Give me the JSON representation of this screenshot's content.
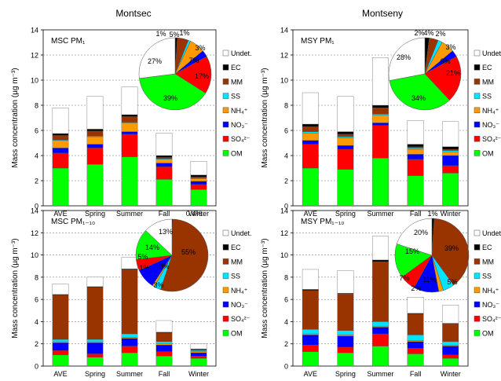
{
  "column_titles": [
    "Montsec",
    "Montseny"
  ],
  "palette": {
    "OM": "#00ff00",
    "SO4": "#ff0000",
    "NO3": "#0000ff",
    "NH4": "#ff9900",
    "SS": "#00e5ff",
    "MM": "#993300",
    "EC": "#000000",
    "Undet": "#ffffff"
  },
  "legend": {
    "items": [
      {
        "key": "Undet",
        "label": "Undet."
      },
      {
        "key": "EC",
        "label": "EC"
      },
      {
        "key": "MM",
        "label": "MM"
      },
      {
        "key": "SS",
        "label": "SS"
      },
      {
        "key": "NH4",
        "label": "NH₄⁺"
      },
      {
        "key": "NO3",
        "label": "NO₃⁻"
      },
      {
        "key": "SO4",
        "label": "SO₄²⁻"
      },
      {
        "key": "OM",
        "label": "OM"
      }
    ]
  },
  "chart_data": [
    {
      "type": "bar",
      "stacked": true,
      "title": "MSC PM₁",
      "ylabel": "Mass concentration (µg m⁻³)",
      "ylim": [
        0,
        14
      ],
      "yticks": [
        0,
        2,
        4,
        6,
        8,
        10,
        12,
        14
      ],
      "grid": true,
      "legend_position": "right",
      "categories": [
        "AVE",
        "Spring",
        "Summer",
        "Fall",
        "Winter"
      ],
      "series": [
        {
          "key": "OM",
          "name": "OM",
          "values": [
            3.0,
            3.3,
            3.9,
            2.1,
            1.3
          ]
        },
        {
          "key": "SO4",
          "name": "SO₄²⁻",
          "values": [
            1.2,
            1.3,
            1.8,
            1.0,
            0.4
          ]
        },
        {
          "key": "NO3",
          "name": "NO₃⁻",
          "values": [
            0.4,
            0.3,
            0.2,
            0.3,
            0.25
          ]
        },
        {
          "key": "NH4",
          "name": "NH₄⁺",
          "values": [
            0.6,
            0.6,
            0.7,
            0.3,
            0.2
          ]
        },
        {
          "key": "SS",
          "name": "SS",
          "values": [
            0.05,
            0.05,
            0.05,
            0.05,
            0.05
          ]
        },
        {
          "key": "MM",
          "name": "MM",
          "values": [
            0.35,
            0.4,
            0.45,
            0.1,
            0.1
          ]
        },
        {
          "key": "EC",
          "name": "EC",
          "values": [
            0.15,
            0.15,
            0.15,
            0.15,
            0.15
          ]
        },
        {
          "key": "Undet",
          "name": "Undet.",
          "values": [
            2.05,
            2.6,
            2.2,
            1.8,
            1.1
          ]
        }
      ],
      "pie": {
        "labels": [
          "OM",
          "SO₄²⁻",
          "NO₃⁻",
          "NH₄⁺",
          "SS",
          "MM",
          "EC",
          "Undet."
        ],
        "keys": [
          "OM",
          "SO4",
          "NO3",
          "NH4",
          "SS",
          "MM",
          "EC",
          "Undet"
        ],
        "values": [
          39,
          17,
          3,
          7,
          1,
          5,
          1,
          27
        ],
        "labels_text": [
          "39%",
          "17%",
          "3%",
          "7%",
          "1%",
          "5%",
          "1%",
          "27%"
        ]
      }
    },
    {
      "type": "bar",
      "stacked": true,
      "title": "MSY PM₁",
      "ylabel": "Mass concentration (µg m⁻³)",
      "ylim": [
        0,
        14
      ],
      "yticks": [
        0,
        2,
        4,
        6,
        8,
        10,
        12,
        14
      ],
      "grid": true,
      "legend_position": "right",
      "categories": [
        "AVE",
        "Spring",
        "Summer",
        "Fall",
        "Winter"
      ],
      "series": [
        {
          "key": "OM",
          "name": "OM",
          "values": [
            3.0,
            2.9,
            3.8,
            2.4,
            2.6
          ]
        },
        {
          "key": "SO4",
          "name": "SO₄²⁻",
          "values": [
            1.9,
            1.6,
            2.6,
            1.3,
            0.6
          ]
        },
        {
          "key": "NO3",
          "name": "NO₃⁻",
          "values": [
            0.3,
            0.3,
            0.2,
            0.4,
            0.8
          ]
        },
        {
          "key": "NH4",
          "name": "NH₄⁺",
          "values": [
            0.6,
            0.6,
            0.6,
            0.4,
            0.3
          ]
        },
        {
          "key": "SS",
          "name": "SS",
          "values": [
            0.1,
            0.1,
            0.1,
            0.1,
            0.1
          ]
        },
        {
          "key": "MM",
          "name": "MM",
          "values": [
            0.4,
            0.2,
            0.5,
            0.1,
            0.1
          ]
        },
        {
          "key": "EC",
          "name": "EC",
          "values": [
            0.2,
            0.2,
            0.2,
            0.2,
            0.2
          ]
        },
        {
          "key": "Undet",
          "name": "Undet.",
          "values": [
            2.5,
            2.8,
            3.8,
            1.9,
            2.0
          ]
        }
      ],
      "pie": {
        "labels": [
          "OM",
          "SO₄²⁻",
          "NO₃⁻",
          "NH₄⁺",
          "SS",
          "MM",
          "EC",
          "Undet."
        ],
        "keys": [
          "OM",
          "SO4",
          "NO3",
          "NH4",
          "SS",
          "MM",
          "EC",
          "Undet"
        ],
        "values": [
          34,
          21,
          3,
          6,
          2,
          4,
          2,
          28
        ],
        "labels_text": [
          "34%",
          "21%",
          "3%",
          "6%",
          "2%",
          "4%",
          "2%",
          "28%"
        ]
      }
    },
    {
      "type": "bar",
      "stacked": true,
      "title": "MSC PM₁₋₁₀",
      "ylabel": "Mass concentration (µg m⁻³)",
      "ylim": [
        0,
        14
      ],
      "yticks": [
        0,
        2,
        4,
        6,
        8,
        10,
        12,
        14
      ],
      "grid": true,
      "legend_position": "right",
      "categories": [
        "AVE",
        "Spring",
        "Summer",
        "Fall",
        "Winter"
      ],
      "series": [
        {
          "key": "OM",
          "name": "OM",
          "values": [
            1.0,
            0.8,
            1.2,
            0.9,
            0.7
          ]
        },
        {
          "key": "SO4",
          "name": "SO₄²⁻",
          "values": [
            0.4,
            0.3,
            0.6,
            0.4,
            0.2
          ]
        },
        {
          "key": "NO3",
          "name": "NO₃⁻",
          "values": [
            0.7,
            1.0,
            0.7,
            0.6,
            0.3
          ]
        },
        {
          "key": "NH4",
          "name": "NH₄⁺",
          "values": [
            0.1,
            0.1,
            0.1,
            0.1,
            0.1
          ]
        },
        {
          "key": "SS",
          "name": "SS",
          "values": [
            0.2,
            0.2,
            0.3,
            0.2,
            0.1
          ]
        },
        {
          "key": "MM",
          "name": "MM",
          "values": [
            4.0,
            4.7,
            5.8,
            0.8,
            0.1
          ]
        },
        {
          "key": "EC",
          "name": "EC",
          "values": [
            0.05,
            0.05,
            0.05,
            0.05,
            0.05
          ]
        },
        {
          "key": "Undet",
          "name": "Undet.",
          "values": [
            0.95,
            0.85,
            1.05,
            1.05,
            0.45
          ]
        }
      ],
      "pie": {
        "labels": [
          "OM",
          "SO₄²⁻",
          "NO₃⁻",
          "NH₄⁺",
          "SS",
          "MM",
          "EC",
          "Undet."
        ],
        "keys": [
          "OM",
          "SO4",
          "NO3",
          "NH4",
          "SS",
          "MM",
          "EC",
          "Undet"
        ],
        "values": [
          14,
          5,
          9,
          1,
          3,
          55,
          0.4,
          13
        ],
        "labels_text": [
          "14%",
          "5%",
          "9%",
          "1%",
          "3%",
          "55%",
          "0.4%",
          "13%"
        ]
      }
    },
    {
      "type": "bar",
      "stacked": true,
      "title": "MSY PM₁₋₁₀",
      "ylabel": "Mass concentration (µg m⁻³)",
      "ylim": [
        0,
        14
      ],
      "yticks": [
        0,
        2,
        4,
        6,
        8,
        10,
        12,
        14
      ],
      "grid": true,
      "legend_position": "right",
      "categories": [
        "AVE",
        "Spring",
        "Summer",
        "Fall",
        "Winter"
      ],
      "series": [
        {
          "key": "OM",
          "name": "OM",
          "values": [
            1.3,
            1.2,
            1.8,
            1.1,
            0.7
          ]
        },
        {
          "key": "SO4",
          "name": "SO₄²⁻",
          "values": [
            0.6,
            0.5,
            1.1,
            0.5,
            0.3
          ]
        },
        {
          "key": "NO3",
          "name": "NO₃⁻",
          "values": [
            0.9,
            1.0,
            0.6,
            0.6,
            0.8
          ]
        },
        {
          "key": "NH4",
          "name": "NH₄⁺",
          "values": [
            0.1,
            0.1,
            0.1,
            0.1,
            0.1
          ]
        },
        {
          "key": "SS",
          "name": "SS",
          "values": [
            0.4,
            0.4,
            0.4,
            0.5,
            0.3
          ]
        },
        {
          "key": "MM",
          "name": "MM",
          "values": [
            3.5,
            3.3,
            5.4,
            1.9,
            1.6
          ]
        },
        {
          "key": "EC",
          "name": "EC",
          "values": [
            0.1,
            0.05,
            0.15,
            0.05,
            0.05
          ]
        },
        {
          "key": "Undet",
          "name": "Undet.",
          "values": [
            1.8,
            2.05,
            2.15,
            1.45,
            1.65
          ]
        }
      ],
      "pie": {
        "labels": [
          "OM",
          "SO₄²⁻",
          "NO₃⁻",
          "NH₄⁺",
          "SS",
          "MM",
          "EC",
          "Undet."
        ],
        "keys": [
          "OM",
          "SO4",
          "NO3",
          "NH4",
          "SS",
          "MM",
          "EC",
          "Undet"
        ],
        "values": [
          15,
          7,
          11,
          2,
          5,
          39,
          1,
          20
        ],
        "labels_text": [
          "15%",
          "7%",
          "11%",
          "2%",
          "5%",
          "39%",
          "1%",
          "20%"
        ]
      }
    }
  ]
}
